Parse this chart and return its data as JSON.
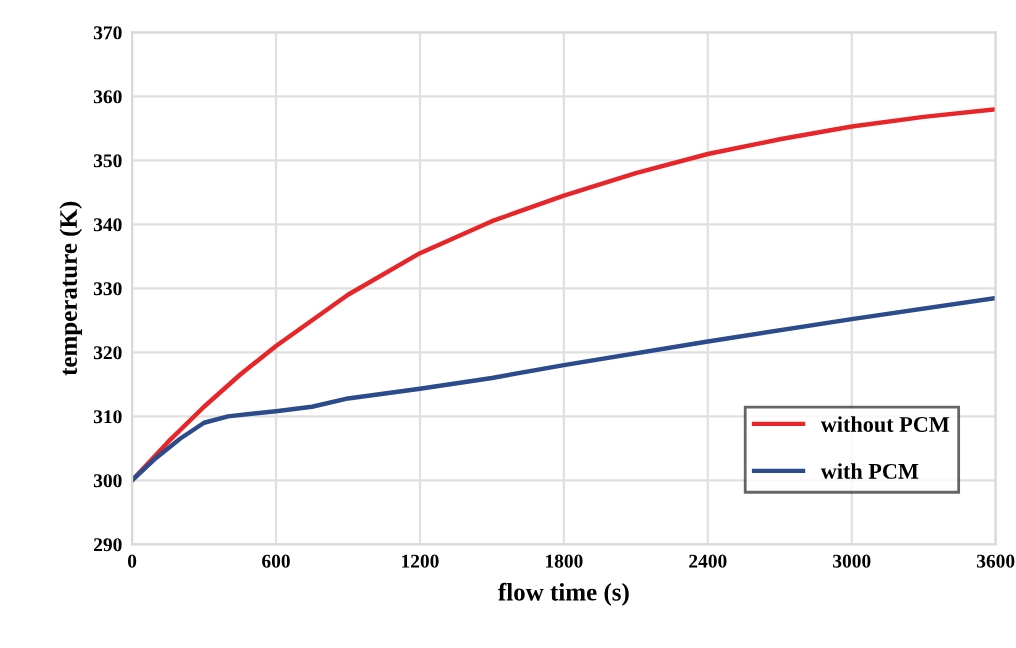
{
  "chart_data": {
    "type": "line",
    "xlabel": "flow time (s)",
    "ylabel": "temperature (K)",
    "xlim": [
      0,
      3600
    ],
    "xticks": [
      0,
      600,
      1200,
      1800,
      2400,
      3000,
      3600
    ],
    "ylim": [
      290,
      370
    ],
    "yticks": [
      290,
      300,
      310,
      320,
      330,
      340,
      350,
      360,
      370
    ],
    "grid": true,
    "legend": "bottom right",
    "line_style": "solid",
    "marker": "none",
    "series": [
      {
        "name": "without PCM",
        "color": "#e8262a",
        "x": [
          0,
          150,
          300,
          450,
          600,
          900,
          1200,
          1500,
          1800,
          2100,
          2400,
          2700,
          3000,
          3300,
          3600
        ],
        "values": [
          300,
          306,
          311.5,
          316.5,
          321,
          329,
          335.5,
          340.5,
          344.5,
          348,
          351,
          353.3,
          355.3,
          356.8,
          358
        ]
      },
      {
        "name": "with PCM",
        "color": "#2b4b8c",
        "x": [
          0,
          100,
          200,
          300,
          400,
          600,
          750,
          900,
          1200,
          1500,
          1800,
          2400,
          3000,
          3600
        ],
        "values": [
          300,
          303.5,
          306.5,
          309,
          310,
          310.8,
          311.5,
          312.8,
          314.3,
          316,
          318,
          321.7,
          325.2,
          328.5
        ]
      }
    ]
  }
}
